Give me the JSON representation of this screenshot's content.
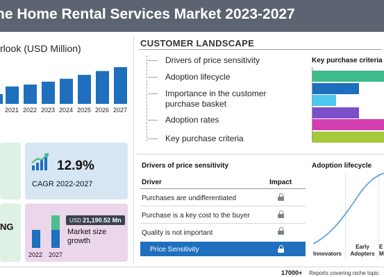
{
  "header": {
    "title": "ne Home Rental Services Market 2023-2027"
  },
  "outlook": {
    "title": "rlook (USD Million)",
    "chart_data": {
      "type": "bar",
      "categories": [
        "2021",
        "2022",
        "2023",
        "2024",
        "2025",
        "2026",
        "2027"
      ],
      "values": [
        18,
        20,
        23,
        26,
        30,
        34,
        38
      ],
      "partially_visible_leading_bar": true,
      "ylim": [
        0,
        40
      ],
      "color": "#1e6fbd"
    }
  },
  "cagr": {
    "value": "12.9%",
    "label": "CAGR 2022-2027"
  },
  "growth_card": {
    "cut_text": "NG"
  },
  "market_size": {
    "badge_prefix": "USD",
    "badge_value": "21,190.52 Mn",
    "label_line1": "Market size",
    "label_line2": "growth",
    "years": [
      "2022",
      "2027"
    ],
    "colors": {
      "base": "#1e6fbd",
      "growth": "#4bbf8c"
    }
  },
  "customer_landscape": {
    "title": "CUSTOMER LANDSCAPE",
    "items": [
      "Drivers of price sensitivity",
      "Adoption lifecycle",
      "Importance in the customer purchase basket",
      "Adoption rates",
      "Key purchase criteria"
    ]
  },
  "key_purchase_criteria": {
    "title": "Key purchase criteria",
    "bars": [
      {
        "value": 1.0,
        "color": "#3dbb8a"
      },
      {
        "value": 0.65,
        "color": "#1e6fbd"
      },
      {
        "value": 0.33,
        "color": "#4fc8f0"
      },
      {
        "value": 0.65,
        "color": "#7b4fc9"
      },
      {
        "value": 1.0,
        "color": "#d33fb0"
      },
      {
        "value": 1.0,
        "color": "#a4c93b"
      }
    ]
  },
  "drivers": {
    "title": "Drivers of price sensitivity",
    "col_driver": "Driver",
    "col_impact": "Impact",
    "rows": [
      "Purchases are undifferentiated",
      "Purchase is a key cost to the buyer",
      "Quality is not important"
    ],
    "highlight": "Price Sensitivity",
    "highlight_color": "#1e6fbd"
  },
  "adoption": {
    "title": "Adoption lifecycle",
    "labels": [
      "Innovators",
      "Early Adopters",
      "E M"
    ]
  },
  "footer": {
    "count": "17000+",
    "text": "Reports covering niche topic"
  }
}
